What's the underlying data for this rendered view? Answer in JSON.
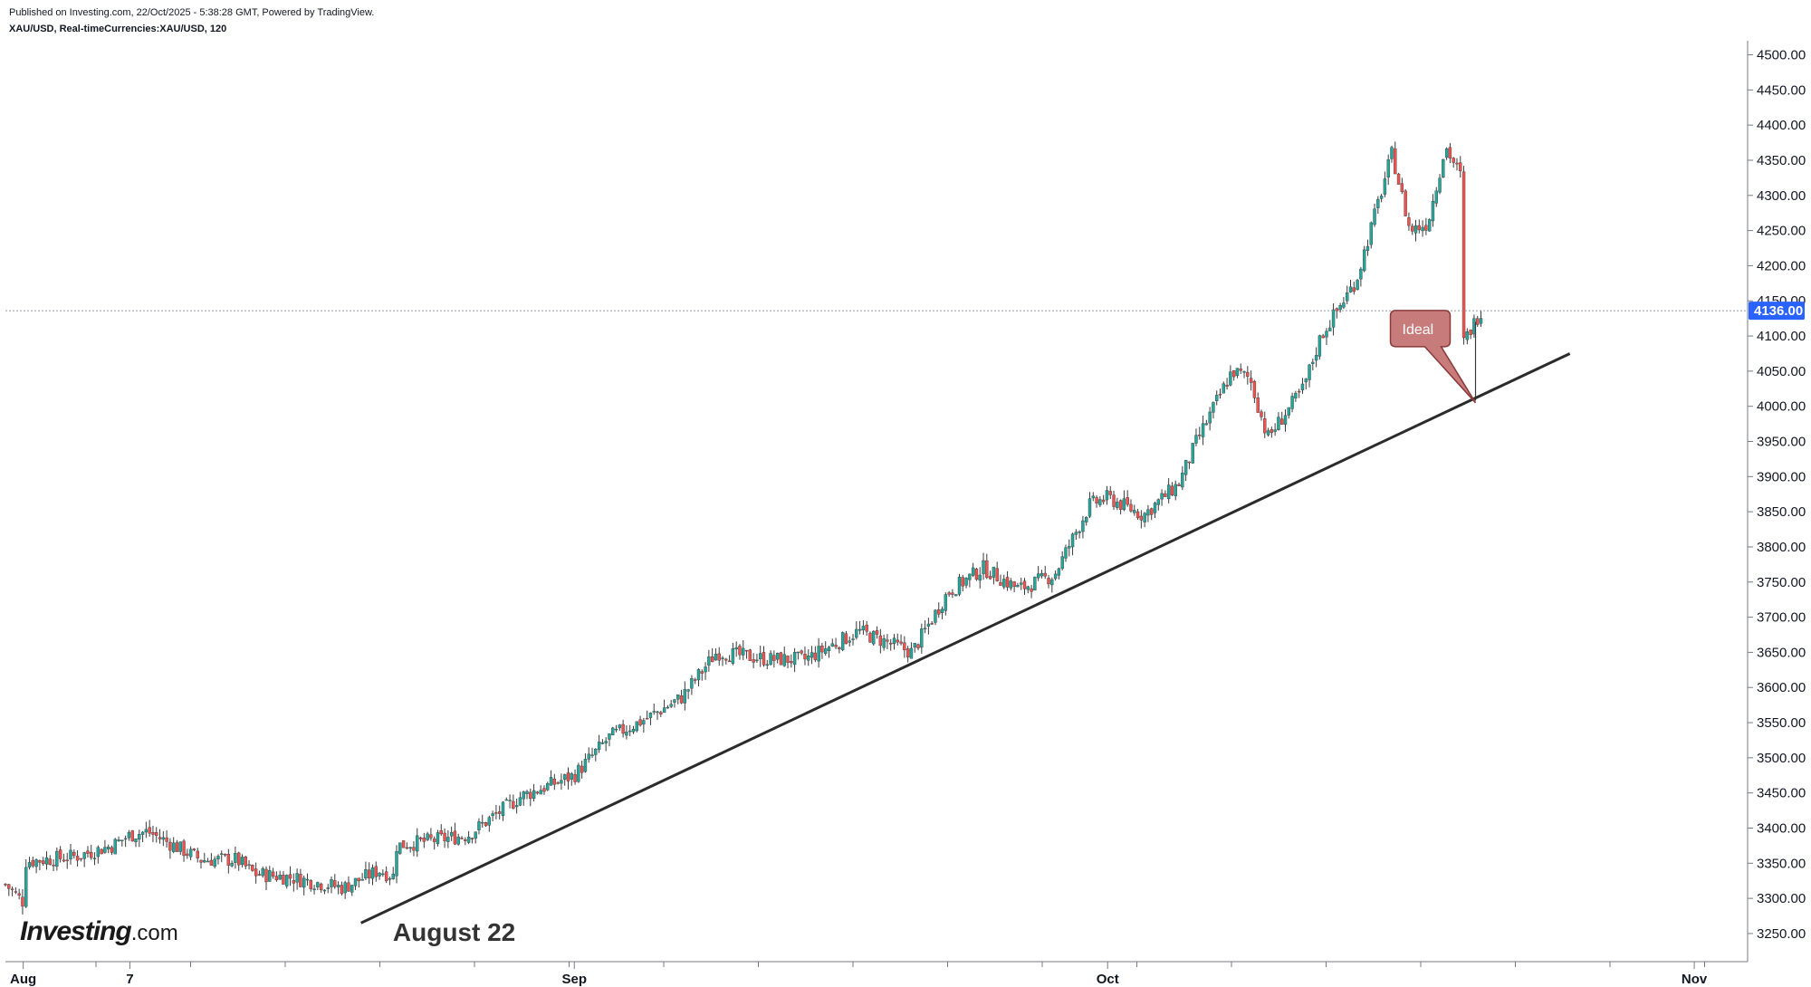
{
  "header": {
    "published": "Published on Investing.com, 22/Oct/2025 - 5:38:28 GMT, Powered by TradingView.",
    "symbol": "XAU/USD, Real-timeCurrencies:XAU/USD, 120"
  },
  "logo": {
    "brand": "Investing",
    "tld": ".com"
  },
  "colors": {
    "up": "#26a69a",
    "down": "#ef5350",
    "trend": "#2b2b2b",
    "price_tag": "#2962ff",
    "callout": "#c87b7b"
  },
  "chart_data": {
    "type": "candlestick",
    "symbol": "XAU/USD",
    "interval": "120",
    "y_axis": {
      "range": [
        3210,
        4520
      ],
      "ticks": [
        3250,
        3300,
        3350,
        3400,
        3450,
        3500,
        3550,
        3600,
        3650,
        3700,
        3750,
        3800,
        3850,
        3900,
        3950,
        4000,
        4050,
        4100,
        4150,
        4200,
        4250,
        4300,
        4350,
        4400,
        4450,
        4500
      ],
      "tick_labels": [
        "3250.00",
        "3300.00",
        "3350.00",
        "3400.00",
        "3450.00",
        "3500.00",
        "3550.00",
        "3600.00",
        "3650.00",
        "3700.00",
        "3750.00",
        "3800.00",
        "3850.00",
        "3900.00",
        "3950.00",
        "4000.00",
        "4050.00",
        "4100.00",
        "4150.00",
        "4200.00",
        "4250.00",
        "4300.00",
        "4350.00",
        "4400.00",
        "4450.00",
        "4500.00"
      ]
    },
    "x_axis": {
      "range": [
        "2025-07-31",
        "2025-11-06"
      ],
      "labels": [
        {
          "date": "2025-08-01",
          "text": "Aug"
        },
        {
          "date": "2025-08-07",
          "text": "7"
        },
        {
          "date": "2025-09-01",
          "text": "Sep"
        },
        {
          "date": "2025-10-01",
          "text": "Oct"
        },
        {
          "date": "2025-11-03",
          "text": "Nov"
        }
      ]
    },
    "current_price": {
      "value": 4136,
      "label": "4136.00"
    },
    "path": [
      [
        "2025-07-31",
        3320
      ],
      [
        "2025-08-01",
        3295
      ],
      [
        "2025-08-01",
        3352
      ],
      [
        "2025-08-04",
        3360
      ],
      [
        "2025-08-06",
        3375
      ],
      [
        "2025-08-07",
        3390
      ],
      [
        "2025-08-08",
        3395
      ],
      [
        "2025-08-11",
        3355
      ],
      [
        "2025-08-13",
        3355
      ],
      [
        "2025-08-14",
        3335
      ],
      [
        "2025-08-16",
        3330
      ],
      [
        "2025-08-19",
        3315
      ],
      [
        "2025-08-21",
        3340
      ],
      [
        "2025-08-22",
        3330
      ],
      [
        "2025-08-22",
        3375
      ],
      [
        "2025-08-26",
        3390
      ],
      [
        "2025-08-29",
        3445
      ],
      [
        "2025-09-01",
        3475
      ],
      [
        "2025-09-03",
        3530
      ],
      [
        "2025-09-05",
        3555
      ],
      [
        "2025-09-07",
        3585
      ],
      [
        "2025-09-09",
        3650
      ],
      [
        "2025-09-12",
        3640
      ],
      [
        "2025-09-14",
        3640
      ],
      [
        "2025-09-17",
        3680
      ],
      [
        "2025-09-20",
        3650
      ],
      [
        "2025-09-22",
        3735
      ],
      [
        "2025-09-24",
        3770
      ],
      [
        "2025-09-26",
        3740
      ],
      [
        "2025-09-28",
        3760
      ],
      [
        "2025-09-30",
        3860
      ],
      [
        "2025-10-01",
        3870
      ],
      [
        "2025-10-03",
        3845
      ],
      [
        "2025-10-05",
        3890
      ],
      [
        "2025-10-06",
        3950
      ],
      [
        "2025-10-08",
        4050
      ],
      [
        "2025-10-09",
        4040
      ],
      [
        "2025-10-10",
        3955
      ],
      [
        "2025-10-12",
        4025
      ],
      [
        "2025-10-13",
        4100
      ],
      [
        "2025-10-15",
        4180
      ],
      [
        "2025-10-17",
        4360
      ],
      [
        "2025-10-18",
        4250
      ],
      [
        "2025-10-19",
        4260
      ],
      [
        "2025-10-20",
        4370
      ],
      [
        "2025-10-21",
        4320
      ],
      [
        "2025-10-21",
        4100
      ],
      [
        "2025-10-21",
        4090
      ],
      [
        "2025-10-22",
        4136
      ]
    ],
    "trendline": [
      [
        "2025-08-20",
        3265
      ],
      [
        "2025-10-27",
        4075
      ]
    ],
    "annotations": [
      {
        "text": "August 22",
        "date": "2025-08-22",
        "price": 3245
      },
      {
        "text": "Ideal",
        "date": "2025-10-22",
        "price": 4005
      }
    ]
  }
}
